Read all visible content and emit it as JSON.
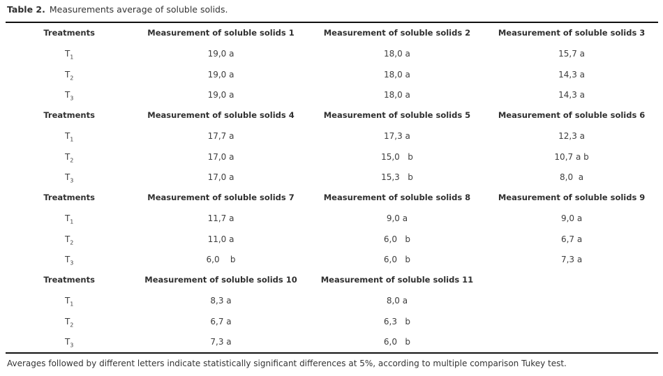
{
  "caption": {
    "label": "Table 2.",
    "text": "Measurements average of soluble solids."
  },
  "footnote": "Averages followed by different letters indicate statistically significant differences at 5%, according to multiple comparison Tukey test.",
  "table": {
    "blocks": [
      {
        "headers": [
          "Treatments",
          "Measurement of soluble solids 1",
          "Measurement of soluble solids 2",
          "Measurement of soluble solids 3"
        ],
        "rows": [
          {
            "treatment": "T",
            "sub": "1",
            "values": [
              "19,0 a",
              "18,0 a",
              "15,7 a"
            ]
          },
          {
            "treatment": "T",
            "sub": "2",
            "values": [
              "19,0 a",
              "18,0 a",
              "14,3 a"
            ]
          },
          {
            "treatment": "T",
            "sub": "3",
            "values": [
              "19,0 a",
              "18,0 a",
              "14,3 a"
            ]
          }
        ]
      },
      {
        "headers": [
          "Treatments",
          "Measurement of soluble solids 4",
          "Measurement of soluble solids 5",
          "Measurement of soluble solids 6"
        ],
        "rows": [
          {
            "treatment": "T",
            "sub": "1",
            "values": [
              "17,7 a",
              "17,3 a",
              "12,3 a"
            ]
          },
          {
            "treatment": "T",
            "sub": "2",
            "values": [
              "17,0 a",
              "15,0   b",
              "10,7 a b"
            ]
          },
          {
            "treatment": "T",
            "sub": "3",
            "values": [
              "17,0 a",
              "15,3   b",
              "8,0  a"
            ]
          }
        ]
      },
      {
        "headers": [
          "Treatments",
          "Measurement of soluble solids 7",
          "Measurement of soluble solids 8",
          "Measurement of soluble solids 9"
        ],
        "rows": [
          {
            "treatment": "T",
            "sub": "1",
            "values": [
              "11,7 a",
              "9,0 a",
              "9,0 a"
            ]
          },
          {
            "treatment": "T",
            "sub": "2",
            "values": [
              "11,0 a",
              "6,0   b",
              "6,7 a"
            ]
          },
          {
            "treatment": "T",
            "sub": "3",
            "values": [
              "6,0    b",
              "6,0   b",
              "7,3 a"
            ]
          }
        ]
      },
      {
        "headers": [
          "Treatments",
          "Measurement of soluble solids 10",
          "Measurement of soluble solids 11",
          ""
        ],
        "rows": [
          {
            "treatment": "T",
            "sub": "1",
            "values": [
              "8,3 a",
              "8,0 a",
              ""
            ]
          },
          {
            "treatment": "T",
            "sub": "2",
            "values": [
              "6,7 a",
              "6,3   b",
              ""
            ]
          },
          {
            "treatment": "T",
            "sub": "3",
            "values": [
              "7,3 a",
              "6,0   b",
              ""
            ]
          }
        ]
      }
    ]
  }
}
